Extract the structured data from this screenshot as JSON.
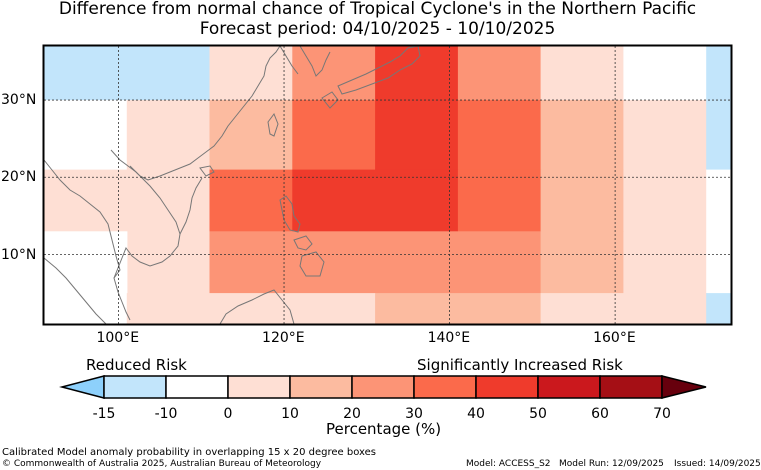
{
  "title": "Difference from normal chance of Tropical Cyclone's in the Northern Pacific",
  "subtitle": "Forecast period: 04/10/2025 - 10/10/2025",
  "map": {
    "region": "Northern Pacific",
    "lon_range": [
      91,
      174
    ],
    "lat_range": [
      1,
      37
    ],
    "lon_ticks": [
      "100°E",
      "120°E",
      "140°E",
      "160°E"
    ],
    "lon_tick_values": [
      100,
      120,
      140,
      160
    ],
    "lat_ticks": [
      "30°N",
      "20°N",
      "10°N"
    ],
    "lat_tick_values": [
      30,
      20,
      10
    ],
    "gridlines": true,
    "land_outline_color": "#777777"
  },
  "risk_labels": {
    "reduced": "Reduced Risk",
    "increased": "Significantly Increased Risk"
  },
  "colorbar": {
    "ticks": [
      "-15",
      "-10",
      "0",
      "10",
      "20",
      "30",
      "40",
      "50",
      "60",
      "70"
    ],
    "colors": [
      "#8dd0fb",
      "#c2e5fb",
      "#ffffff",
      "#fedfd4",
      "#fcbba0",
      "#fc9476",
      "#fb6a4b",
      "#ef3b2c",
      "#cb181d",
      "#a50f15",
      "#67000d"
    ],
    "label": "Percentage (%)"
  },
  "anomaly_cells": [
    {
      "lon": [
        91,
        111
      ],
      "lat": [
        30,
        37
      ],
      "value": -12
    },
    {
      "lon": [
        91,
        101
      ],
      "lat": [
        21,
        30
      ],
      "value": -8
    },
    {
      "lon": [
        101,
        111
      ],
      "lat": [
        21,
        30
      ],
      "value": 0
    },
    {
      "lon": [
        91,
        101
      ],
      "lat": [
        13,
        21
      ],
      "value": 0
    },
    {
      "lon": [
        101,
        111
      ],
      "lat": [
        5,
        21
      ],
      "value": 5
    },
    {
      "lon": [
        91,
        101
      ],
      "lat": [
        1,
        13
      ],
      "value": -8
    },
    {
      "lon": [
        101,
        111
      ],
      "lat": [
        1,
        5
      ],
      "value": 0
    },
    {
      "lon": [
        111,
        121
      ],
      "lat": [
        30,
        37
      ],
      "value": 0
    },
    {
      "lon": [
        121,
        131
      ],
      "lat": [
        30,
        37
      ],
      "value": 25
    },
    {
      "lon": [
        131,
        141
      ],
      "lat": [
        30,
        37
      ],
      "value": 45
    },
    {
      "lon": [
        141,
        151
      ],
      "lat": [
        30,
        37
      ],
      "value": 25
    },
    {
      "lon": [
        151,
        161
      ],
      "lat": [
        30,
        37
      ],
      "value": 5
    },
    {
      "lon": [
        161,
        171
      ],
      "lat": [
        30,
        37
      ],
      "value": -8
    },
    {
      "lon": [
        171,
        174
      ],
      "lat": [
        30,
        37
      ],
      "value": -12
    },
    {
      "lon": [
        111,
        121
      ],
      "lat": [
        21,
        30
      ],
      "value": 15
    },
    {
      "lon": [
        121,
        131
      ],
      "lat": [
        21,
        30
      ],
      "value": 35
    },
    {
      "lon": [
        131,
        141
      ],
      "lat": [
        21,
        30
      ],
      "value": 45
    },
    {
      "lon": [
        141,
        151
      ],
      "lat": [
        21,
        30
      ],
      "value": 35
    },
    {
      "lon": [
        151,
        161
      ],
      "lat": [
        21,
        30
      ],
      "value": 15
    },
    {
      "lon": [
        161,
        171
      ],
      "lat": [
        21,
        30
      ],
      "value": 0
    },
    {
      "lon": [
        171,
        174
      ],
      "lat": [
        21,
        30
      ],
      "value": -12
    },
    {
      "lon": [
        111,
        121
      ],
      "lat": [
        13,
        21
      ],
      "value": 35
    },
    {
      "lon": [
        121,
        141
      ],
      "lat": [
        13,
        21
      ],
      "value": 45
    },
    {
      "lon": [
        141,
        151
      ],
      "lat": [
        13,
        21
      ],
      "value": 35
    },
    {
      "lon": [
        151,
        161
      ],
      "lat": [
        13,
        21
      ],
      "value": 15
    },
    {
      "lon": [
        161,
        171
      ],
      "lat": [
        13,
        21
      ],
      "value": 0
    },
    {
      "lon": [
        171,
        174
      ],
      "lat": [
        13,
        21
      ],
      "value": -8
    },
    {
      "lon": [
        111,
        151
      ],
      "lat": [
        5,
        13
      ],
      "value": 25
    },
    {
      "lon": [
        151,
        161
      ],
      "lat": [
        5,
        13
      ],
      "value": 15
    },
    {
      "lon": [
        161,
        171
      ],
      "lat": [
        5,
        13
      ],
      "value": 0
    },
    {
      "lon": [
        171,
        174
      ],
      "lat": [
        5,
        13
      ],
      "value": -8
    },
    {
      "lon": [
        111,
        131
      ],
      "lat": [
        1,
        5
      ],
      "value": 5
    },
    {
      "lon": [
        131,
        151
      ],
      "lat": [
        1,
        5
      ],
      "value": 15
    },
    {
      "lon": [
        151,
        161
      ],
      "lat": [
        1,
        5
      ],
      "value": 5
    },
    {
      "lon": [
        161,
        171
      ],
      "lat": [
        1,
        5
      ],
      "value": 0
    },
    {
      "lon": [
        171,
        174
      ],
      "lat": [
        1,
        5
      ],
      "value": -12
    }
  ],
  "footer": {
    "description": "Calibrated Model anomaly probability in overlapping 15 x 20 degree boxes",
    "copyright": "© Commonwealth of Australia 2025, Australian Bureau of Meteorology",
    "model": "Model: ACCESS_S2",
    "model_run": "Model Run: 12/09/2025",
    "issued": "Issued: 14/09/2025"
  }
}
